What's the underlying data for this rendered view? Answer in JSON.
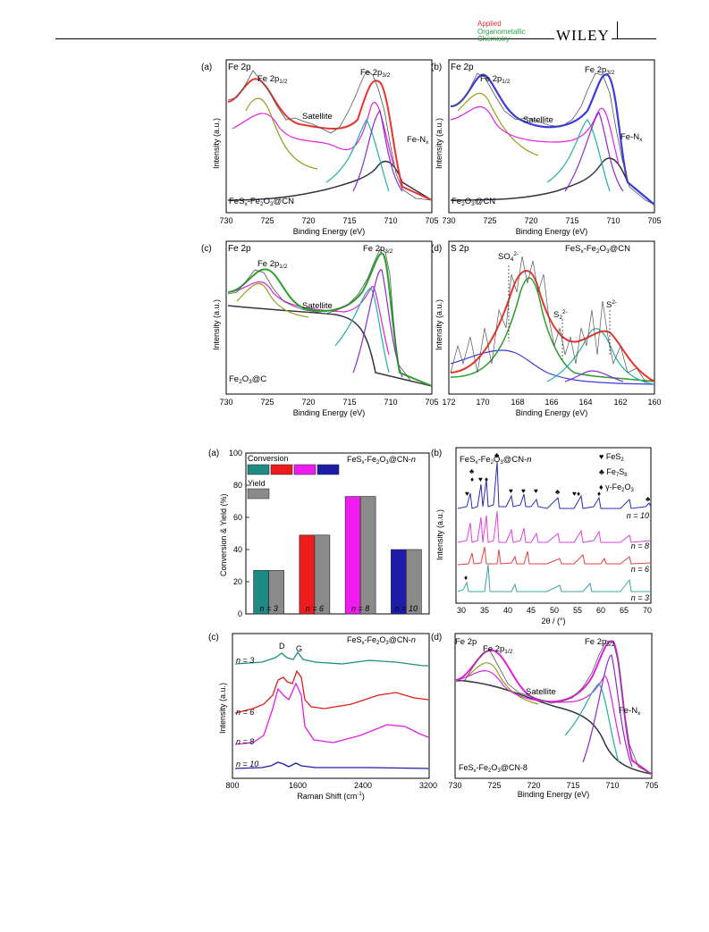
{
  "header": {
    "journal_line1": "Applied",
    "journal_line2": "Organometallic",
    "journal_line3": "Chemistry",
    "publisher": "WILEY"
  },
  "figure1": {
    "panel_a": {
      "letter": "(a)",
      "region": "Fe 2p",
      "peak1": "Fe 2p",
      "peak1_sub": "1/2",
      "peak2": "Fe 2p",
      "peak2_sub": "3/2",
      "satellite": "Satellite",
      "fen": "Fe-N",
      "fen_sub": "x",
      "sample": "FeS",
      "sample_sub": "x",
      "sample_rest": "-Fe",
      "sample_sub2": "2",
      "sample_rest2": "O",
      "sample_sub3": "3",
      "sample_rest3": "@CN"
    },
    "panel_b": {
      "letter": "(b)",
      "region": "Fe 2p",
      "peak1": "Fe 2p",
      "peak1_sub": "1/2",
      "peak2": "Fe 2p",
      "peak2_sub": "3/2",
      "satellite": "Satellite",
      "fen": "Fe-N",
      "fen_sub": "x",
      "sample": "Fe",
      "sample_sub": "2",
      "sample_rest": "O",
      "sample_sub2": "3",
      "sample_rest2": "@CN"
    },
    "panel_c": {
      "letter": "(c)",
      "region": "Fe 2p",
      "peak1": "Fe 2p",
      "peak1_sub": "1/2",
      "peak2": "Fe 2p",
      "peak2_sub": "3/2",
      "satellite": "Satellite",
      "sample": "Fe",
      "sample_sub": "2",
      "sample_rest": "O",
      "sample_sub2": "3",
      "sample_rest2": "@C"
    },
    "panel_d": {
      "letter": "(d)",
      "region": "S 2p",
      "so4": "SO",
      "so4_sub": "4",
      "so4_sup": "2-",
      "s2": "S",
      "s2_sub": "2",
      "s2_sup": "2-",
      "s": "S",
      "s_sup": "2-",
      "sample": "FeS",
      "sample_sub": "x",
      "sample_rest": "-Fe",
      "sample_sub2": "2",
      "sample_rest2": "O",
      "sample_sub3": "3",
      "sample_rest3": "@CN"
    },
    "fe_xticks": [
      "730",
      "725",
      "720",
      "715",
      "710",
      "705"
    ],
    "s_xticks": [
      "172",
      "170",
      "168",
      "166",
      "164",
      "162",
      "160"
    ],
    "xlabel": "Binding Energy (eV)",
    "ylabel": "Intensity (a.u.)"
  },
  "figure2": {
    "panel_a": {
      "letter": "(a)",
      "legend_conversion": "Conversion",
      "legend_yield": "Yield",
      "title": "FeS",
      "title_sub": "x",
      "title_rest": "-Fe",
      "title_sub2": "2",
      "title_rest2": "O",
      "title_sub3": "3",
      "title_rest3": "@CN-",
      "title_n": "n",
      "ylabel": "Conversion & Yield (%)",
      "yticks": [
        "0",
        "20",
        "40",
        "60",
        "80",
        "100"
      ]
    },
    "panel_b": {
      "letter": "(b)",
      "title": "FeS",
      "title_sub": "x",
      "title_rest": "-Fe",
      "title_sub2": "2",
      "title_rest2": "O",
      "title_sub3": "3",
      "title_rest3": "@CN-",
      "title_n": "n",
      "legend": [
        {
          "symbol": "♥",
          "name": "FeS",
          "sub": "2"
        },
        {
          "symbol": "♣",
          "name": "Fe",
          "sub": "7",
          "rest": "S",
          "sub2": "8"
        },
        {
          "symbol": "♦",
          "name": "γ-Fe",
          "sub": "2",
          "rest": "O",
          "sub2": "3"
        }
      ],
      "curve_labels": [
        "n = 10",
        "n = 8",
        "n = 6",
        "n = 3"
      ],
      "xticks": [
        "30",
        "35",
        "40",
        "45",
        "50",
        "55",
        "60",
        "65",
        "70"
      ],
      "xlabel": "2θ / (°)",
      "ylabel": "Intensity (a.u.)"
    },
    "panel_c": {
      "letter": "(c)",
      "title": "FeS",
      "title_sub": "x",
      "title_rest": "-Fe",
      "title_sub2": "2",
      "title_rest2": "O",
      "title_sub3": "3",
      "title_rest3": "@CN-",
      "title_n": "n",
      "d_label": "D",
      "g_label": "G",
      "curve_labels": [
        "n = 3",
        "n = 6",
        "n = 8",
        "n = 10"
      ],
      "xticks": [
        "800",
        "1600",
        "2400",
        "3200"
      ],
      "xlabel": "Raman Shift (cm",
      "xlabel_sup": "-1",
      "xlabel_end": ")",
      "ylabel": "Intensity (a.u.)"
    },
    "panel_d": {
      "letter": "(d)",
      "region": "Fe 2p",
      "peak1": "Fe 2p",
      "peak1_sub": "1/2",
      "peak2": "Fe 2p",
      "peak2_sub": "3/2",
      "satellite": "Satellite",
      "fen": "Fe-N",
      "fen_sub": "x",
      "sample": "FeS",
      "sample_sub": "x",
      "sample_rest": "-Fe",
      "sample_sub2": "2",
      "sample_rest2": "O",
      "sample_sub3": "3",
      "sample_rest3": "@CN-8"
    }
  },
  "chart_data": [
    {
      "type": "bar",
      "categories": [
        "n = 3",
        "n = 6",
        "n = 8",
        "n = 10"
      ],
      "series": [
        {
          "name": "Conversion",
          "values": [
            27,
            49,
            73,
            40
          ],
          "colors": [
            "#1f8a84",
            "#ee1c1c",
            "#ee1cee",
            "#1c1ca8"
          ]
        },
        {
          "name": "Yield",
          "values": [
            27,
            49,
            73,
            40
          ],
          "colors": [
            "#8a8a8a",
            "#8a8a8a",
            "#8a8a8a",
            "#8a8a8a"
          ]
        }
      ],
      "ylabel": "Conversion & Yield (%)",
      "ylim": [
        0,
        100
      ]
    }
  ],
  "colors": {
    "fe_envelope_cn": "#e8342c",
    "fe_envelope_fe2o3": "#3a3ae0",
    "fe_envelope_c": "#2aa02a",
    "fe_envelope_cn8": "#e020e0",
    "xrd_n10": "#2a2ab8",
    "xrd_n8": "#e040e0",
    "xrd_n6": "#e84040",
    "xrd_n3": "#3aa6a0",
    "raman_n3": "#1f8a84",
    "raman_n6": "#e01c1c",
    "raman_n8": "#e01ce0",
    "raman_n10": "#1c1ca8"
  }
}
